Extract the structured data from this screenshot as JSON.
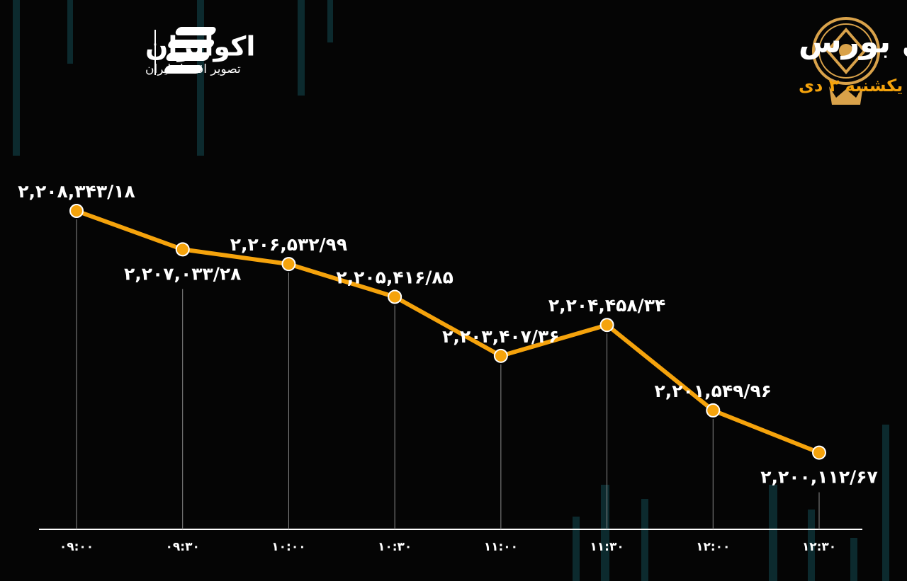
{
  "branding": {
    "name": "اکوایران",
    "tagline": "تصویر اقتصاد ایران"
  },
  "chart_data": {
    "type": "line",
    "title": "روند شاخص کل بورس",
    "subtitle": "یکشنبه ۳ دی",
    "categories": [
      "۰۹:۰۰",
      "۰۹:۳۰",
      "۱۰:۰۰",
      "۱۰:۳۰",
      "۱۱:۰۰",
      "۱۱:۳۰",
      "۱۲:۰۰",
      "۱۲:۳۰"
    ],
    "values": [
      2208343.18,
      2207033.28,
      2206532.99,
      2205416.85,
      2203407.36,
      2204458.34,
      2201549.96,
      2200112.67
    ],
    "value_labels": [
      "۲,۲۰۸,۳۴۳/۱۸",
      "۲,۲۰۷,۰۳۳/۲۸",
      "۲,۲۰۶,۵۳۲/۹۹",
      "۲,۲۰۵,۴۱۶/۸۵",
      "۲,۲۰۳,۴۰۷/۳۶",
      "۲,۲۰۴,۴۵۸/۳۴",
      "۲,۲۰۱,۵۴۹/۹۶",
      "۲,۲۰۰,۱۱۲/۶۷"
    ],
    "color": "#f5a30c",
    "ylim": [
      2197500,
      2209500
    ]
  }
}
